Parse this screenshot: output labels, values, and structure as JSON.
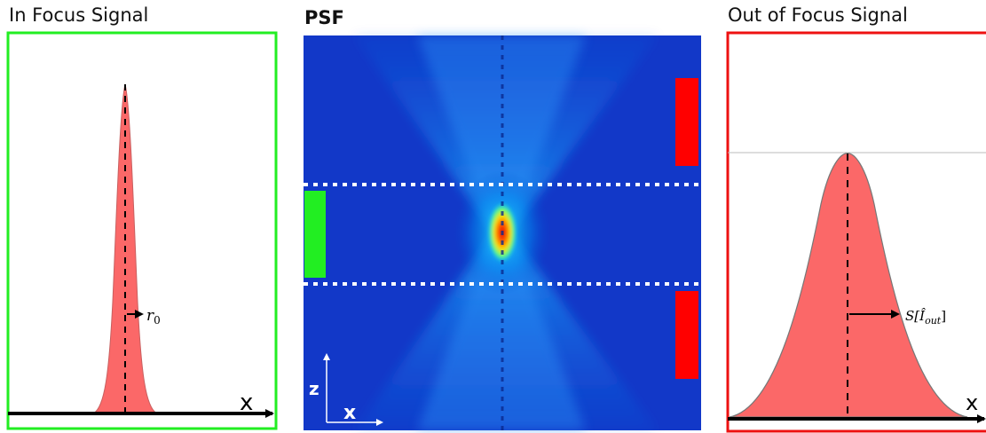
{
  "left_panel": {
    "title": "In Focus Signal",
    "frame_color": "#22ee22",
    "axis_label": "x",
    "annotation": "r",
    "annotation_sub": "0"
  },
  "center_panel": {
    "title": "PSF",
    "axis_z_label": "z",
    "axis_x_label": "x",
    "in_focus_marker_color": "#22ee22",
    "out_focus_marker_color": "#ff0000"
  },
  "right_panel": {
    "title": "Out of Focus Signal",
    "frame_color": "#ee1111",
    "axis_label": "x",
    "annotation_prefix": "S[",
    "annotation_var": "Î",
    "annotation_sub": "out",
    "annotation_suffix": "]"
  },
  "fill_color": "#fb6868"
}
